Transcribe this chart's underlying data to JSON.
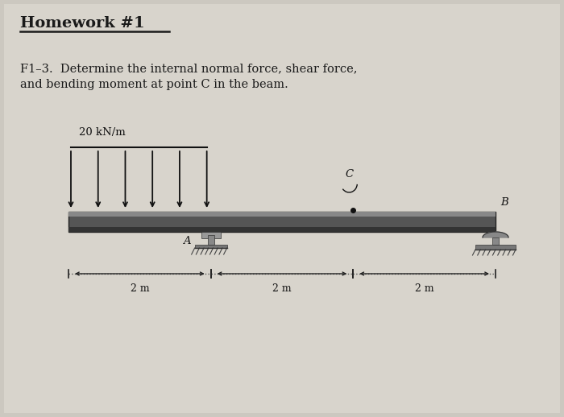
{
  "background_color": "#ccc8c0",
  "title": "Homework #1",
  "problem_label": "F1–3.",
  "problem_text": "Determine the internal normal force, shear force,\nand bending moment at point C in the beam.",
  "load_label": "20 kN/m",
  "beam_color": "#666666",
  "beam_top_color": "#999999",
  "beam_edge_color": "#333333",
  "fig_width": 7.0,
  "fig_height": 5.18,
  "dpi": 100
}
